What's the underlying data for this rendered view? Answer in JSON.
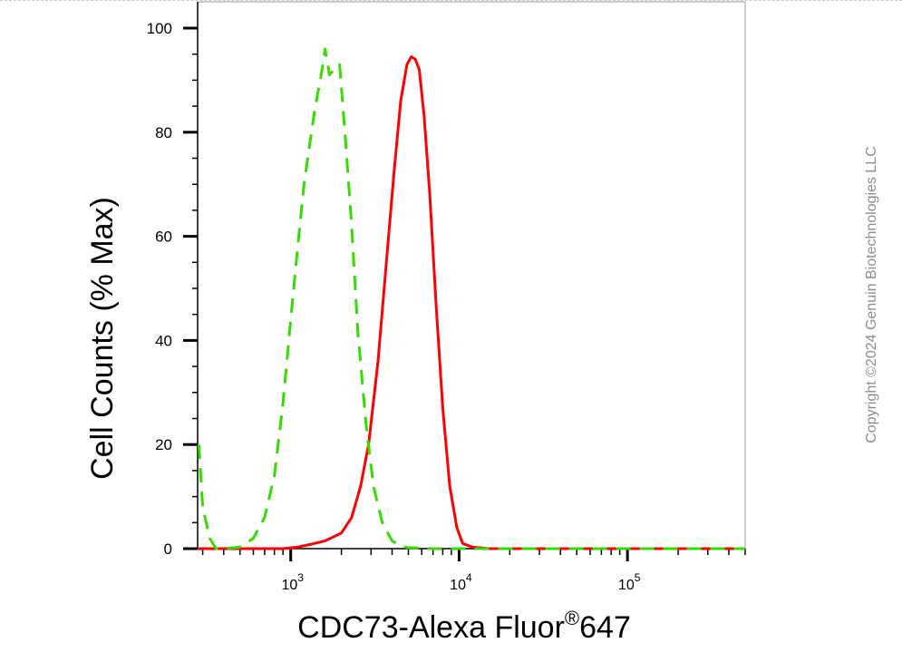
{
  "chart_data": {
    "type": "line",
    "x_scale": "log",
    "xlabel": "CDC73-Alexa Fluor",
    "xlabel_suffix": "647",
    "xlabel_mark": "®",
    "ylabel": "Cell Counts (% Max)",
    "ylim": [
      0,
      100
    ],
    "xlim": [
      280,
      500000
    ],
    "y_ticks": [
      0,
      20,
      40,
      60,
      80,
      100
    ],
    "x_ticks": [
      {
        "value": 1000,
        "base": "10",
        "exp": "3"
      },
      {
        "value": 10000,
        "base": "10",
        "exp": "4"
      },
      {
        "value": 100000,
        "base": "10",
        "exp": "5"
      }
    ],
    "series": [
      {
        "color": "#ff0000",
        "style": "solid",
        "x": [
          280,
          900,
          1100,
          1300,
          1600,
          2000,
          2300,
          2600,
          2900,
          3300,
          3700,
          4100,
          4500,
          4900,
          5200,
          5500,
          5800,
          6200,
          6700,
          7300,
          8000,
          8800,
          9700,
          10500,
          12000,
          15000,
          30000,
          100000,
          500000
        ],
        "y": [
          0,
          0,
          0.3,
          0.8,
          1.5,
          3,
          6,
          12,
          20,
          36,
          55,
          72,
          86,
          93,
          94.5,
          94,
          92,
          83,
          68,
          47,
          27,
          12,
          4,
          1,
          0.3,
          0,
          0,
          0,
          0
        ]
      },
      {
        "color": "#33dd00",
        "style": "dashed",
        "x": [
          285,
          300,
          330,
          360,
          400,
          500,
          600,
          700,
          800,
          900,
          1000,
          1100,
          1200,
          1300,
          1400,
          1500,
          1600,
          1700,
          1800,
          1950,
          2100,
          2300,
          2500,
          2800,
          3100,
          3500,
          4000,
          4500,
          5000,
          7000,
          10000,
          500000
        ],
        "y": [
          20,
          8,
          2,
          0,
          0,
          0.3,
          2,
          6,
          14,
          28,
          44,
          58,
          70,
          78,
          85,
          90,
          96,
          91,
          92,
          93,
          80,
          62,
          42,
          24,
          12,
          5,
          1.5,
          0.5,
          0.2,
          0,
          0,
          0
        ]
      }
    ]
  },
  "watermark": "Copyright ©2024 Genuin Biotechnologies LLC"
}
